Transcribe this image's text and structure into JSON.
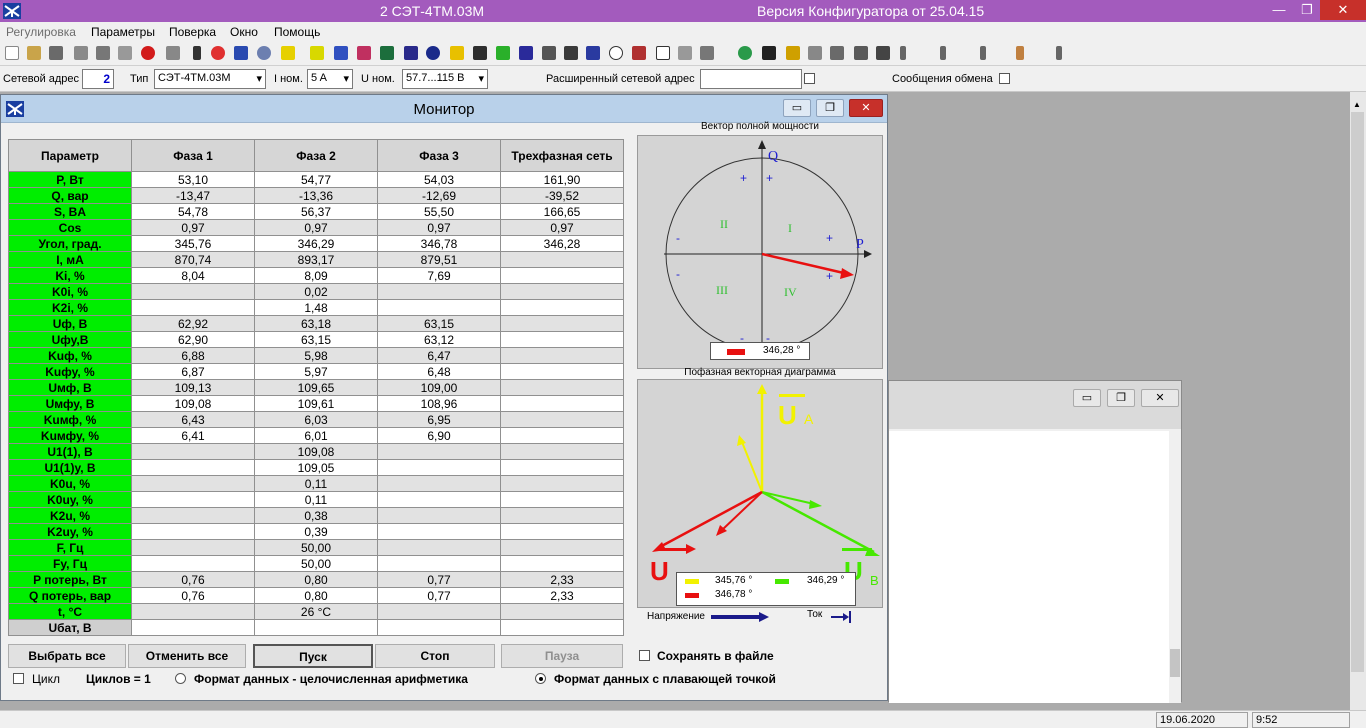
{
  "titlebar": {
    "app_title": "2  СЭТ-4ТМ.03М",
    "version": "Версия Конфигуратора  от 25.04.15",
    "minimize": "—",
    "restore": "❐",
    "close": "✕"
  },
  "menu": [
    "Регулировка",
    "Параметры",
    "Поверка",
    "Окно",
    "Помощь"
  ],
  "addr": {
    "net_label": "Сетевой адрес",
    "net_value": "2",
    "type_label": "Тип",
    "type_value": "СЭТ-4ТМ.03М",
    "inom_label": "I ном.",
    "inom_value": "5 A",
    "unom_label": "U ном.",
    "unom_value": "57.7...115 B",
    "ext_label": "Расширенный сетевой адрес",
    "ext_value": "",
    "exch_label": "Сообщения обмена"
  },
  "monitor": {
    "title": "Монитор",
    "headers": [
      "Параметр",
      "Фаза 1",
      "Фаза 2",
      "Фаза 3",
      "Трехфазная сеть"
    ],
    "rows": [
      [
        "P, Вт",
        "53,10",
        "54,77",
        "54,03",
        "161,90"
      ],
      [
        "Q, вар",
        "-13,47",
        "-13,36",
        "-12,69",
        "-39,52"
      ],
      [
        "S, BA",
        "54,78",
        "56,37",
        "55,50",
        "166,65"
      ],
      [
        "Cos",
        "0,97",
        "0,97",
        "0,97",
        "0,97"
      ],
      [
        "Угол, град.",
        "345,76",
        "346,29",
        "346,78",
        "346,28"
      ],
      [
        "I, мА",
        "870,74",
        "893,17",
        "879,51",
        ""
      ],
      [
        "Ki, %",
        "8,04",
        "8,09",
        "7,69",
        ""
      ],
      [
        "K0i, %",
        "",
        "0,02",
        "",
        ""
      ],
      [
        "K2i, %",
        "",
        "1,48",
        "",
        ""
      ],
      [
        "Uф, B",
        "62,92",
        "63,18",
        "63,15",
        ""
      ],
      [
        "Uфу,B",
        "62,90",
        "63,15",
        "63,12",
        ""
      ],
      [
        "Kuф, %",
        "6,88",
        "5,98",
        "6,47",
        ""
      ],
      [
        "Kuфу, %",
        "6,87",
        "5,97",
        "6,48",
        ""
      ],
      [
        "Uмф, B",
        "109,13",
        "109,65",
        "109,00",
        ""
      ],
      [
        "Uмфу, B",
        "109,08",
        "109,61",
        "108,96",
        ""
      ],
      [
        "Kuмф, %",
        "6,43",
        "6,03",
        "6,95",
        ""
      ],
      [
        "Kuмфу, %",
        "6,41",
        "6,01",
        "6,90",
        ""
      ],
      [
        "U1(1), B",
        "",
        "109,08",
        "",
        ""
      ],
      [
        "U1(1)у, B",
        "",
        "109,05",
        "",
        ""
      ],
      [
        "K0u, %",
        "",
        "0,11",
        "",
        ""
      ],
      [
        "K0uу, %",
        "",
        "0,11",
        "",
        ""
      ],
      [
        "K2u, %",
        "",
        "0,38",
        "",
        ""
      ],
      [
        "K2uу, %",
        "",
        "0,39",
        "",
        ""
      ],
      [
        "F, Гц",
        "",
        "50,00",
        "",
        ""
      ],
      [
        "Fу, Гц",
        "",
        "50,00",
        "",
        ""
      ],
      [
        "P потерь, Вт",
        "0,76",
        "0,80",
        "0,77",
        "2,33"
      ],
      [
        "Q потерь, вар",
        "0,76",
        "0,80",
        "0,77",
        "2,33"
      ],
      [
        "t, °C",
        "",
        "26 °C",
        "",
        ""
      ],
      [
        "Uбат, B",
        "",
        "",
        "",
        ""
      ]
    ],
    "buttons": {
      "select_all": "Выбрать все",
      "cancel_all": "Отменить все",
      "start": "Пуск",
      "stop": "Стоп",
      "pause": "Пауза"
    },
    "save_to_file": "Сохранять в файле",
    "cycle": "Цикл",
    "cycles_count": "Циклов = 1",
    "format_int": "Формат данных - целочисленная арифметика",
    "format_float": "Формат данных с плавающей точкой",
    "vector_title": "Вектор полной мощности",
    "vector_axis_q": "Q",
    "vector_axis_p": "P",
    "quadrants": [
      "II",
      "I",
      "III",
      "IV"
    ],
    "vector_angle_legend": "346,28 °",
    "phase_title": "Пофазная векторная диаграмма",
    "phase_labels": {
      "ua_u": "U",
      "ua_sub": "A",
      "ub_u": "U",
      "ub_sub": "B",
      "uc_u": "U",
      "uc_sub": "C"
    },
    "phase_legend": [
      "345,76 °",
      "346,29 °",
      "346,78 °"
    ],
    "legend_voltage": "Напряжение",
    "legend_current": "Ток"
  },
  "status": {
    "date": "19.06.2020",
    "time": "9:52"
  },
  "colors": {
    "phase_a": "#f2f200",
    "phase_b": "#46e800",
    "phase_c": "#e81010",
    "param_green": "#00ee00",
    "title_purple": "#a35bbd"
  }
}
